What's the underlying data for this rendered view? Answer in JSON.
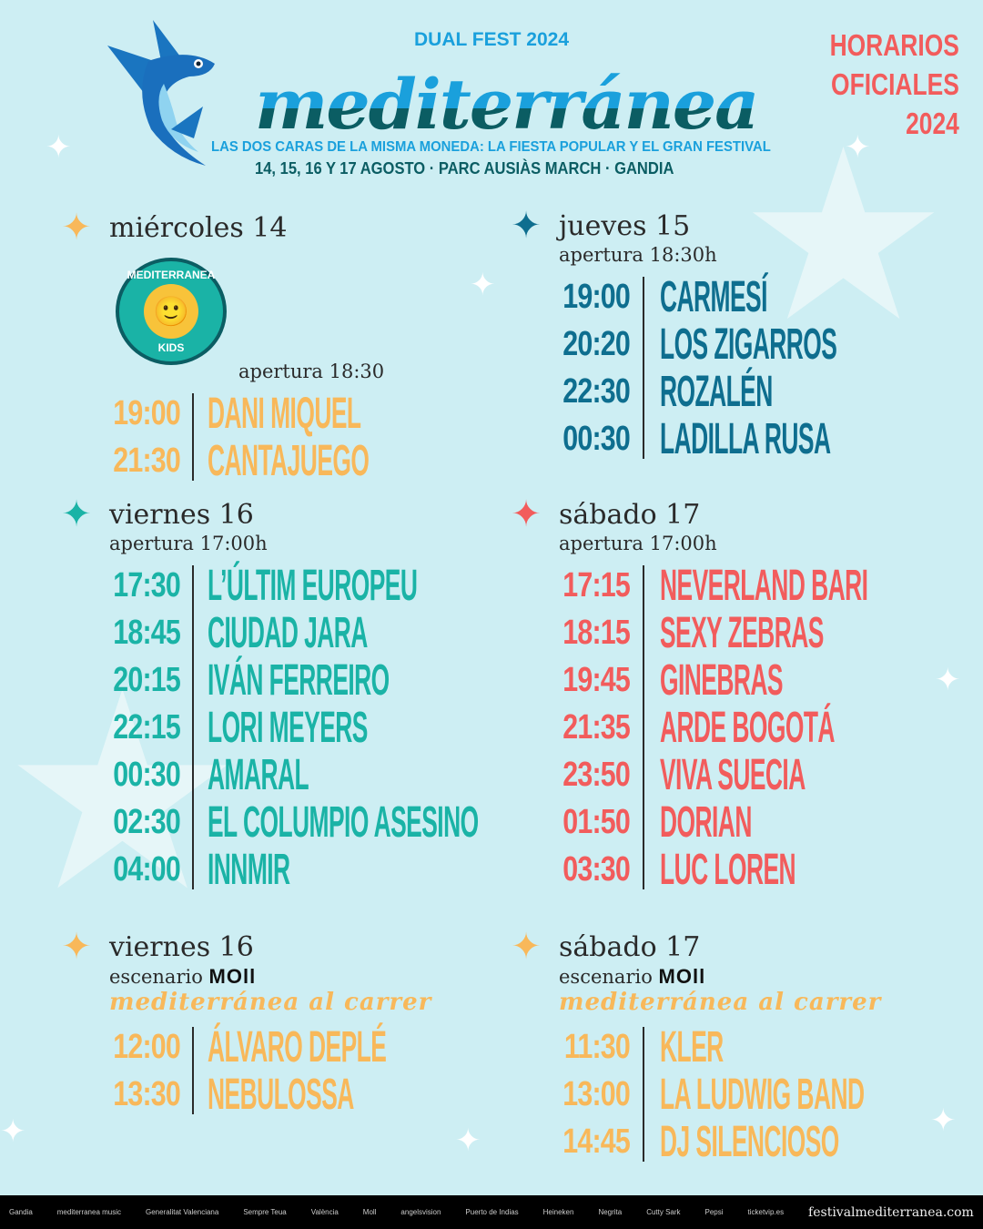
{
  "header": {
    "dual": "DUAL FEST 2024",
    "logo": "mediterránea",
    "tagline": "LAS DOS CARAS DE LA MISMA MONEDA: LA FIESTA POPULAR Y EL GRAN FESTIVAL",
    "dates": "14, 15, 16 Y 17 AGOSTO · PARC AUSIÀS MARCH · GANDIA",
    "official": [
      "HORARIOS",
      "OFICIALES",
      "2024"
    ]
  },
  "kids_logo": {
    "top": "MEDITERRANEA",
    "bottom": "KIDS"
  },
  "colors": {
    "background": "#cdeef3",
    "orange": "#f8b85a",
    "dark_blue": "#0e6e8f",
    "teal": "#1ab3a6",
    "coral": "#f25c5c",
    "header_blue": "#1aa0dc"
  },
  "sections": [
    {
      "day": "miércoles 14",
      "star": "#f8b85a",
      "color": "#f8b85a",
      "sub": "apertura 18:30",
      "rows": [
        [
          "19:00",
          "DANI MIQUEL"
        ],
        [
          "21:30",
          "CANTAJUEGO"
        ]
      ]
    },
    {
      "day": "jueves 15",
      "star": "#0e6e8f",
      "color": "#0e6e8f",
      "sub": "apertura 18:30h",
      "rows": [
        [
          "19:00",
          "CARMESÍ"
        ],
        [
          "20:20",
          "LOS ZIGARROS"
        ],
        [
          "22:30",
          "ROZALÉN"
        ],
        [
          "00:30",
          "LADILLA RUSA"
        ]
      ]
    },
    {
      "day": "viernes 16",
      "star": "#1ab3a6",
      "color": "#1ab3a6",
      "sub": "apertura 17:00h",
      "rows": [
        [
          "17:30",
          "L’ÚLTIM EUROPEU"
        ],
        [
          "18:45",
          "CIUDAD JARA"
        ],
        [
          "20:15",
          "IVÁN FERREIRO"
        ],
        [
          "22:15",
          "LORI MEYERS"
        ],
        [
          "00:30",
          "AMARAL"
        ],
        [
          "02:30",
          "EL COLUMPIO ASESINO"
        ],
        [
          "04:00",
          "INNMIR"
        ]
      ]
    },
    {
      "day": "sábado 17",
      "star": "#f25c5c",
      "color": "#f25c5c",
      "sub": "apertura 17:00h",
      "rows": [
        [
          "17:15",
          "NEVERLAND BARI"
        ],
        [
          "18:15",
          "SEXY ZEBRAS"
        ],
        [
          "19:45",
          "GINEBRAS"
        ],
        [
          "21:35",
          "ARDE BOGOTÁ"
        ],
        [
          "23:50",
          "VIVA SUECIA"
        ],
        [
          "01:50",
          "DORIAN"
        ],
        [
          "03:30",
          "LUC LOREN"
        ]
      ]
    },
    {
      "day": "viernes 16",
      "star": "#f8b85a",
      "color": "#f8b85a",
      "sub": "escenario",
      "stage": "MOll",
      "carrer": "mediterránea al carrer",
      "rows": [
        [
          "12:00",
          "ÁLVARO DEPLÉ"
        ],
        [
          "13:30",
          "NEBULOSSA"
        ]
      ]
    },
    {
      "day": "sábado 17",
      "star": "#f8b85a",
      "color": "#f8b85a",
      "sub": "escenario",
      "stage": "MOll",
      "carrer": "mediterránea al carrer",
      "rows": [
        [
          "11:30",
          "KLER"
        ],
        [
          "13:00",
          "LA LUDWIG BAND"
        ],
        [
          "14:45",
          "DJ SILENCIOSO"
        ]
      ]
    }
  ],
  "footer": {
    "sponsors": [
      "Gandia",
      "mediterranea music",
      "Generalitat Valenciana",
      "Sempre Teua",
      "València",
      "Moll",
      "angelsvision",
      "Puerto de Indias",
      "Heineken",
      "Negrita",
      "Cutty Sark",
      "Pepsi",
      "ticketvip.es"
    ],
    "url": "festivalmediterranea.com"
  }
}
